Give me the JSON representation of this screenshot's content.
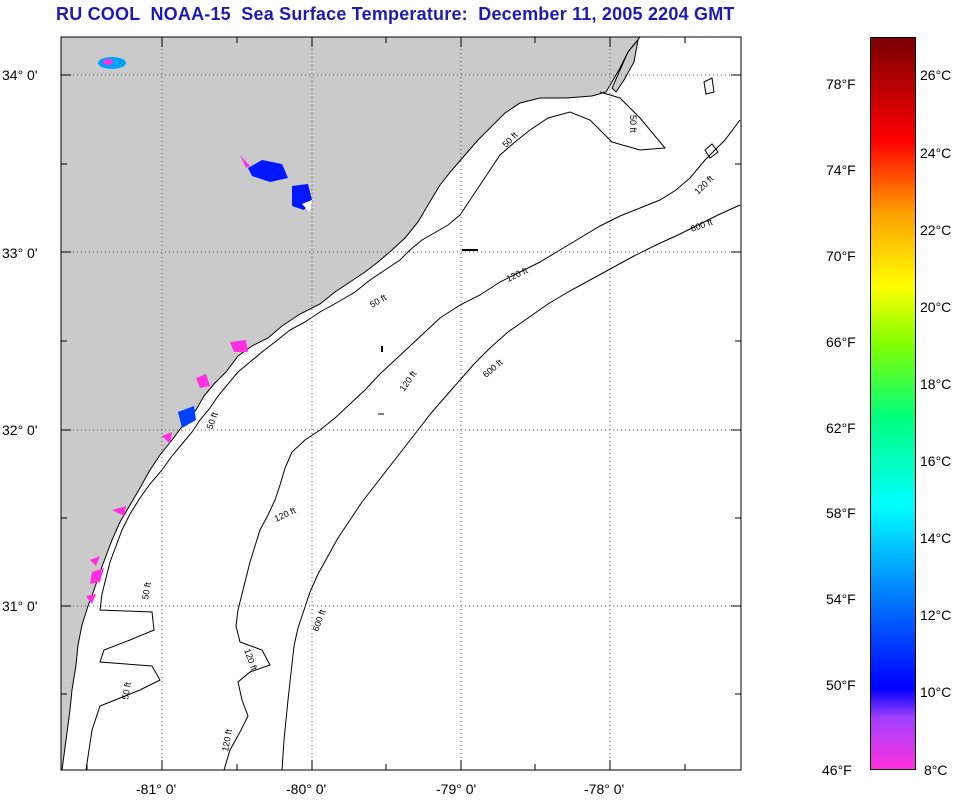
{
  "title": "RU COOL  NOAA-15  Sea Surface Temperature:  December 11, 2005 2204 GMT",
  "map": {
    "lat_labels": [
      "34° 0'",
      "33° 0'",
      "32° 0'",
      "31° 0'"
    ],
    "lon_labels": [
      "-81° 0'",
      "-80° 0'",
      "-79° 0'",
      "-78° 0'"
    ],
    "contour_labels": {
      "c50": "50 ft",
      "c120": "120 ft",
      "c600": "600 ft"
    }
  },
  "colorbar": {
    "fahrenheit": [
      "78°F",
      "74°F",
      "70°F",
      "66°F",
      "62°F",
      "58°F",
      "54°F",
      "50°F",
      "46°F"
    ],
    "celsius": [
      "26°C",
      "24°C",
      "22°C",
      "20°C",
      "18°C",
      "16°C",
      "14°C",
      "12°C",
      "10°C",
      "8°C"
    ],
    "colors": {
      "min": "#ff30e0",
      "low": "#0000ff",
      "mid": "#00ffff",
      "warm": "#ffff00",
      "hot": "#ff0000",
      "max": "#7a0000"
    }
  },
  "colors": {
    "land": "#cacaca",
    "title": "#1c1cb4"
  }
}
